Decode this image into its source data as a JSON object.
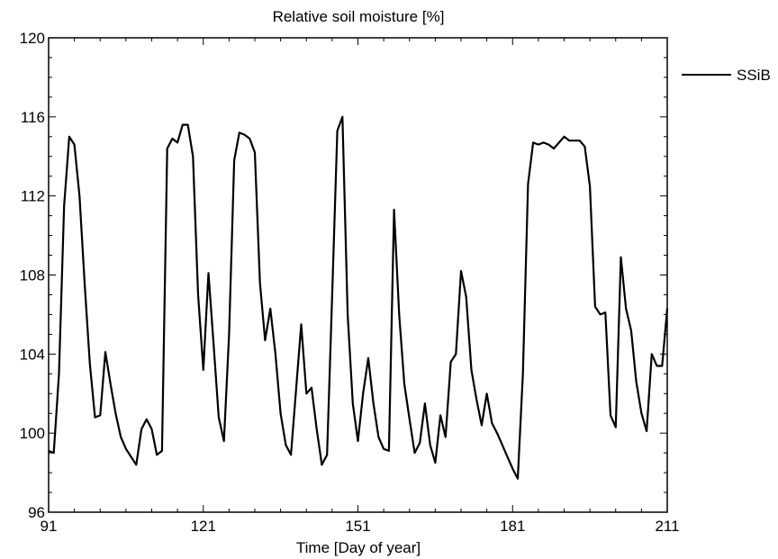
{
  "chart_data": {
    "type": "line",
    "title": "Relative soil moisture [%]",
    "xlabel": "Time [Day of year]",
    "ylabel": "",
    "xlim": [
      91,
      211
    ],
    "ylim": [
      96,
      120
    ],
    "x_ticks": [
      91,
      121,
      151,
      181,
      211
    ],
    "y_ticks": [
      96,
      100,
      104,
      108,
      112,
      116,
      120
    ],
    "grid": false,
    "legend_position": "right, outside plot",
    "line_color": "#000000",
    "series": [
      {
        "name": "SSiB",
        "x": [
          91,
          92,
          93,
          94,
          95,
          96,
          97,
          98,
          99,
          100,
          101,
          102,
          103,
          104,
          105,
          106,
          107,
          108,
          109,
          110,
          111,
          112,
          113,
          114,
          115,
          116,
          117,
          118,
          119,
          120,
          121,
          122,
          123,
          124,
          125,
          126,
          127,
          128,
          129,
          130,
          131,
          132,
          133,
          134,
          135,
          136,
          137,
          138,
          139,
          140,
          141,
          142,
          143,
          144,
          145,
          146,
          147,
          148,
          149,
          150,
          151,
          152,
          153,
          154,
          155,
          156,
          157,
          158,
          159,
          160,
          161,
          162,
          163,
          164,
          165,
          166,
          167,
          168,
          169,
          170,
          171,
          172,
          173,
          174,
          175,
          176,
          177,
          178,
          179,
          180,
          181,
          182,
          183,
          184,
          185,
          186,
          187,
          188,
          189,
          190,
          191,
          192,
          193,
          194,
          195,
          196,
          197,
          198,
          199,
          200,
          201,
          202,
          203,
          204,
          205,
          206,
          207,
          208,
          209,
          210,
          211
        ],
        "values": [
          99.1,
          99.0,
          103.0,
          111.5,
          115.0,
          114.6,
          112.0,
          107.5,
          103.5,
          100.8,
          100.9,
          104.1,
          102.5,
          101.0,
          99.8,
          99.2,
          98.8,
          98.4,
          100.2,
          100.7,
          100.2,
          98.9,
          99.1,
          114.4,
          114.9,
          114.7,
          115.6,
          115.6,
          114.0,
          107.0,
          103.2,
          108.1,
          104.5,
          100.8,
          99.6,
          105.0,
          113.8,
          115.2,
          115.1,
          114.9,
          114.2,
          107.6,
          104.7,
          106.3,
          104.0,
          101.0,
          99.4,
          98.9,
          102.2,
          105.5,
          102.0,
          102.3,
          100.2,
          98.4,
          98.9,
          107.0,
          115.3,
          116.0,
          106.0,
          101.5,
          99.6,
          102.0,
          103.8,
          101.5,
          99.8,
          99.2,
          99.1,
          111.3,
          106.0,
          102.5,
          100.7,
          99.0,
          99.5,
          101.5,
          99.4,
          98.5,
          100.9,
          99.8,
          103.6,
          104.0,
          108.2,
          106.9,
          103.2,
          101.7,
          100.4,
          102.0,
          100.5,
          100.0,
          99.4,
          98.8,
          98.2,
          97.7,
          103.0,
          112.6,
          114.7,
          114.6,
          114.7,
          114.6,
          114.4,
          114.7,
          115.0,
          114.8,
          114.8,
          114.8,
          114.5,
          112.5,
          106.4,
          106.0,
          106.1,
          100.9,
          100.3,
          108.9,
          106.3,
          105.2,
          102.6,
          101.0,
          100.1,
          104.0,
          103.4,
          103.4,
          106.3
        ]
      }
    ]
  }
}
